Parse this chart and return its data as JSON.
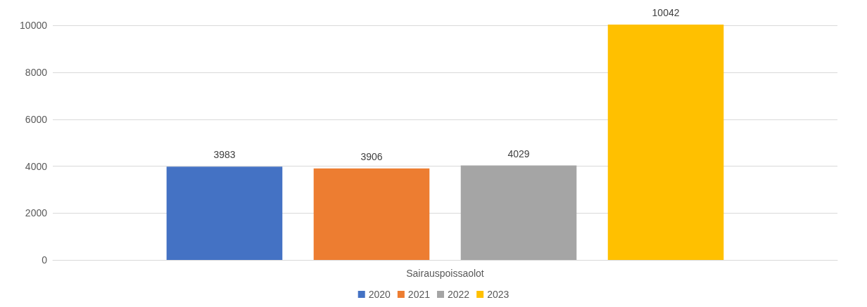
{
  "chart_data": {
    "type": "bar",
    "categories": [
      "Sairauspoissaolot"
    ],
    "series": [
      {
        "name": "2020",
        "color": "#4472c4",
        "values": [
          3983
        ]
      },
      {
        "name": "2021",
        "color": "#ed7d31",
        "values": [
          3906
        ]
      },
      {
        "name": "2022",
        "color": "#a5a5a5",
        "values": [
          4029
        ]
      },
      {
        "name": "2023",
        "color": "#ffc000",
        "values": [
          10042
        ]
      }
    ],
    "ylim": [
      0,
      10042
    ],
    "yticks": [
      0,
      2000,
      4000,
      6000,
      8000,
      10000
    ],
    "grid": "y",
    "legend": "bottom",
    "data_labels": true
  }
}
